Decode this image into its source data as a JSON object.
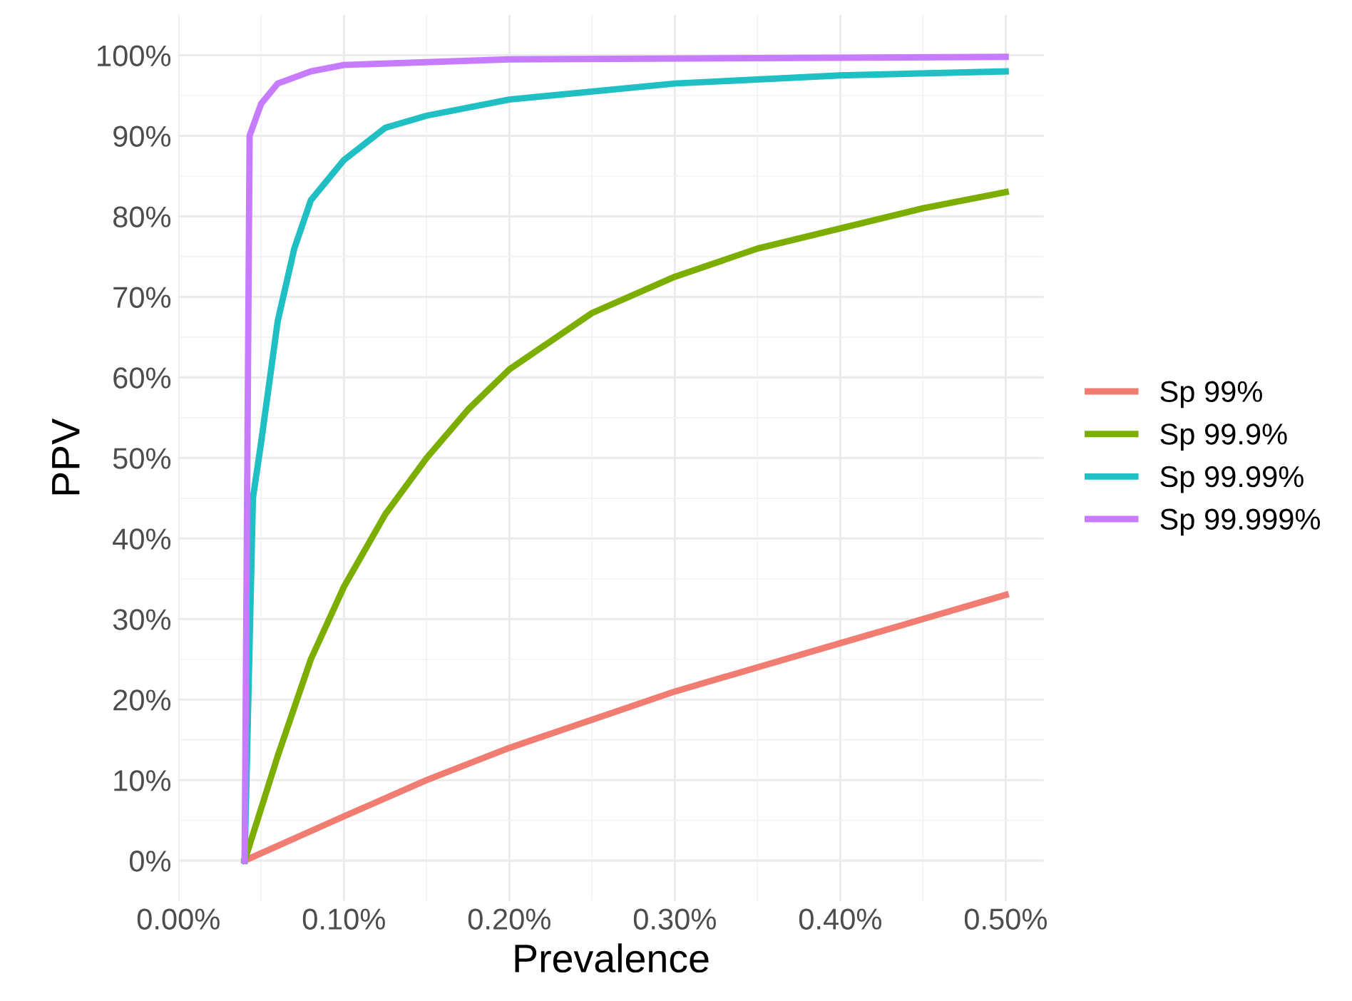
{
  "chart_data": {
    "type": "line",
    "xlabel": "Prevalence",
    "ylabel": "PPV",
    "xlim": [
      0,
      0.523
    ],
    "ylim": [
      -5,
      105
    ],
    "xticks": [
      {
        "value": 0,
        "label": "0.00%"
      },
      {
        "value": 0.1,
        "label": "0.10%"
      },
      {
        "value": 0.2,
        "label": "0.20%"
      },
      {
        "value": 0.3,
        "label": "0.30%"
      },
      {
        "value": 0.4,
        "label": "0.40%"
      },
      {
        "value": 0.5,
        "label": "0.50%"
      }
    ],
    "yticks": [
      {
        "value": 0,
        "label": "0%"
      },
      {
        "value": 10,
        "label": "10%"
      },
      {
        "value": 20,
        "label": "20%"
      },
      {
        "value": 30,
        "label": "30%"
      },
      {
        "value": 40,
        "label": "40%"
      },
      {
        "value": 50,
        "label": "50%"
      },
      {
        "value": 60,
        "label": "60%"
      },
      {
        "value": 70,
        "label": "70%"
      },
      {
        "value": 80,
        "label": "80%"
      },
      {
        "value": 90,
        "label": "90%"
      },
      {
        "value": 100,
        "label": "100%"
      }
    ],
    "grid": true,
    "legend": "right",
    "marker": "none",
    "line_style": "solid",
    "series": [
      {
        "name": "Sp 99%",
        "color": "#f07c72",
        "x": [
          0.04,
          0.1,
          0.15,
          0.2,
          0.25,
          0.3,
          0.35,
          0.4,
          0.45,
          0.5
        ],
        "values": [
          0,
          5.5,
          10,
          14,
          17.5,
          21,
          24,
          27,
          30,
          33
        ]
      },
      {
        "name": "Sp 99.9%",
        "color": "#7cae00",
        "x": [
          0.04,
          0.06,
          0.08,
          0.1,
          0.125,
          0.15,
          0.175,
          0.2,
          0.25,
          0.3,
          0.35,
          0.4,
          0.45,
          0.5
        ],
        "values": [
          0,
          13,
          25,
          34,
          43,
          50,
          56,
          61,
          68,
          72.5,
          76,
          78.5,
          81,
          83
        ]
      },
      {
        "name": "Sp 99.99%",
        "color": "#1fbfc4",
        "x": [
          0.04,
          0.045,
          0.05,
          0.06,
          0.07,
          0.08,
          0.1,
          0.125,
          0.15,
          0.2,
          0.3,
          0.4,
          0.5
        ],
        "values": [
          0,
          45,
          52,
          67,
          76,
          82,
          87,
          91,
          92.5,
          94.5,
          96.5,
          97.5,
          98
        ]
      },
      {
        "name": "Sp 99.999%",
        "color": "#c77cff",
        "x": [
          0.04,
          0.043,
          0.05,
          0.06,
          0.08,
          0.1,
          0.2,
          0.5
        ],
        "values": [
          0,
          90,
          94,
          96.5,
          98,
          98.8,
          99.5,
          99.8
        ]
      }
    ]
  }
}
